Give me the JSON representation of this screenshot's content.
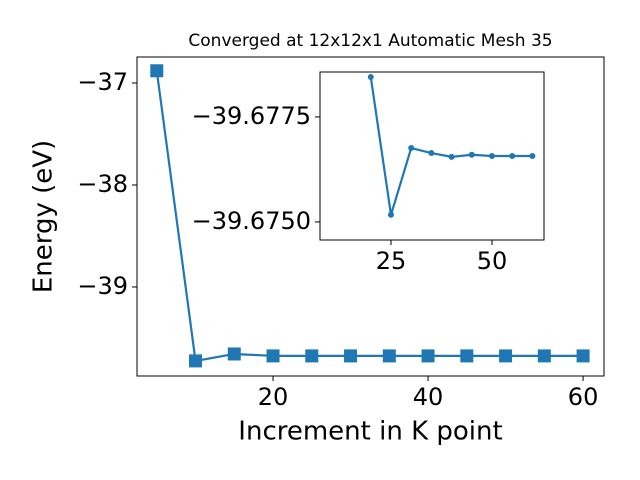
{
  "chart_data": [
    {
      "type": "line",
      "title": "Converged at 12x12x1 Automatic Mesh 35",
      "x_label": "Increment in K point",
      "y_label": "Energy (eV)",
      "x": [
        5,
        10,
        15,
        20,
        25,
        30,
        35,
        40,
        45,
        50,
        55,
        60
      ],
      "series": [
        {
          "color": "#1f77b4",
          "marker": "square",
          "values": [
            -36.88,
            -39.725,
            -39.657,
            -39.676,
            -39.676,
            -39.676,
            -39.676,
            -39.676,
            -39.676,
            -39.676,
            -39.676,
            -39.676
          ]
        }
      ],
      "xlim": [
        2.45,
        62.7
      ],
      "ylim": [
        -39.873,
        -36.745
      ],
      "xticks": [
        20,
        40,
        60
      ],
      "yticks": [
        {
          "value": -37,
          "label": "−37"
        },
        {
          "value": -38,
          "label": "−38"
        },
        {
          "value": -39,
          "label": "−39"
        }
      ]
    },
    {
      "type": "line",
      "x": [
        20,
        25,
        30,
        35,
        40,
        45,
        50,
        55,
        60
      ],
      "series": [
        {
          "color": "#1f77b4",
          "marker": "circle",
          "values": [
            -39.67845,
            -39.67517,
            -39.67676,
            -39.67664,
            -39.67655,
            -39.6766,
            -39.67657,
            -39.67657,
            -39.67657
          ]
        }
      ],
      "xlim": [
        7.43,
        62.87
      ],
      "ylim": [
        -39.67457,
        -39.67857
      ],
      "xticks": [
        25,
        50
      ],
      "yticks": [
        {
          "value": -39.6775,
          "label": "−39.6775"
        },
        {
          "value": -39.675,
          "label": "−39.6750"
        }
      ]
    }
  ]
}
